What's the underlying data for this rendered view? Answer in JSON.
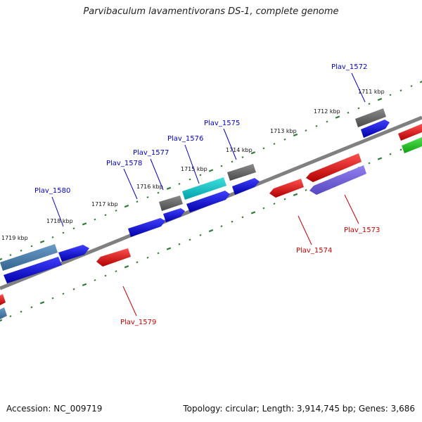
{
  "title": "Parvibaculum lavamentivorans DS-1, complete genome",
  "footer": {
    "accession": "Accession: NC_009719",
    "summary": "Topology: circular; Length: 3,914,745 bp; Genes: 3,686"
  },
  "colors": {
    "backbone": "#808080",
    "tick": "#2e7d32",
    "forward_label": "#0000cc",
    "reverse_label": "#cc0000"
  },
  "scale_labels": [
    "1711 kbp",
    "1712 kbp",
    "1713 kbp",
    "1714 kbp",
    "1715 kbp",
    "1716 kbp",
    "1717 kbp",
    "1718 kbp",
    "1719 kbp"
  ],
  "forward_labels": [
    "Plav_1572",
    "Plav_1575",
    "Plav_1576",
    "Plav_1577",
    "Plav_1578",
    "Plav_1580"
  ],
  "reverse_labels": [
    "Plav_1573",
    "Plav_1574",
    "Plav_1579"
  ]
}
